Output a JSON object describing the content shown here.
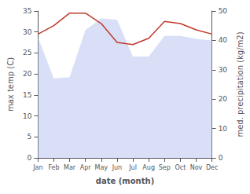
{
  "chart_data": {
    "type": "line",
    "categories": [
      "Jan",
      "Feb",
      "Mar",
      "Apr",
      "May",
      "Jun",
      "Jul",
      "Aug",
      "Sep",
      "Oct",
      "Nov",
      "Dec"
    ],
    "series": [
      {
        "type": "area",
        "color": "#b8c4ee",
        "axis": "y2",
        "values": [
          41.0,
          27.0,
          27.5,
          43.5,
          47.5,
          47.0,
          34.5,
          34.5,
          41.5,
          41.5,
          40.5,
          40.0
        ]
      },
      {
        "type": "line",
        "color": "#c0392b",
        "values": [
          29.5,
          31.5,
          34.5,
          34.5,
          32.0,
          27.5,
          27.0,
          28.5,
          32.5,
          32.0,
          30.5,
          29.5
        ]
      }
    ],
    "xlabel": "date (month)",
    "ylabel": "max temp (C)",
    "y2label": "med. precipitation (kg/m2)",
    "ylim": [
      0,
      35
    ],
    "yticks": [
      0,
      5,
      10,
      15,
      20,
      25,
      30,
      35
    ],
    "y2lim": [
      0,
      50
    ],
    "y2ticks": [
      0,
      10,
      20,
      30,
      40,
      50
    ],
    "grid": false
  }
}
